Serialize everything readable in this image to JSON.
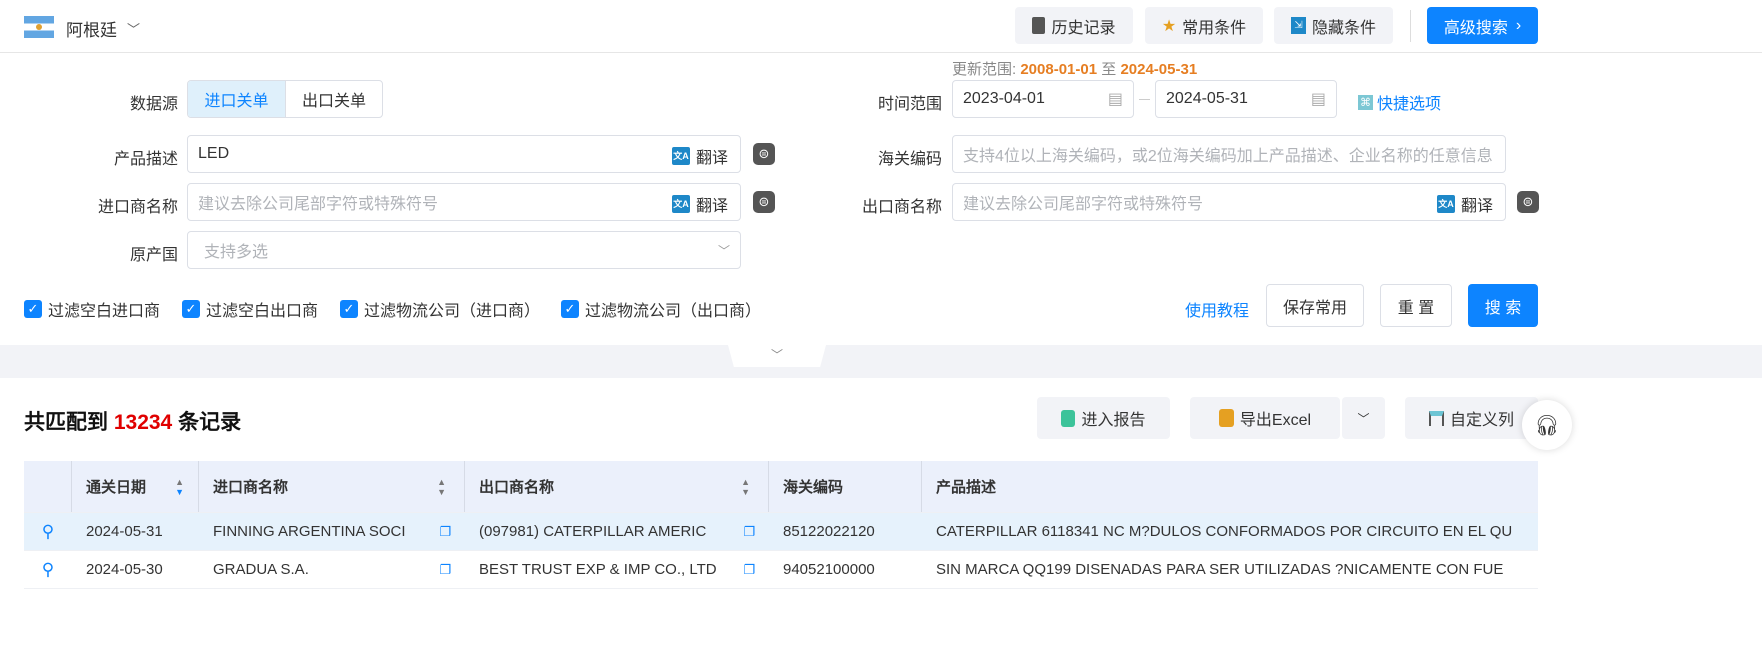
{
  "header": {
    "country": "阿根廷",
    "history": "历史记录",
    "favorites": "常用条件",
    "hide": "隐藏条件",
    "advanced": "高级搜索"
  },
  "update_range": {
    "label": "更新范围:",
    "start": "2008-01-01",
    "sep": "至",
    "end": "2024-05-31"
  },
  "form": {
    "source_label": "数据源",
    "source_options": [
      "进口关单",
      "出口关单"
    ],
    "source_selected": "进口关单",
    "time_label": "时间范围",
    "date_start": "2023-04-01",
    "date_end": "2024-05-31",
    "quick": "快捷选项",
    "product_label": "产品描述",
    "product_value": "LED",
    "translate": "翻译",
    "hs_label": "海关编码",
    "hs_placeholder": "支持4位以上海关编码，或2位海关编码加上产品描述、企业名称的任意信息",
    "importer_label": "进口商名称",
    "importer_placeholder": "建议去除公司尾部字符或特殊符号",
    "exporter_label": "出口商名称",
    "exporter_placeholder": "建议去除公司尾部字符或特殊符号",
    "origin_label": "原产国",
    "origin_placeholder": "支持多选",
    "checkboxes": [
      "过滤空白进口商",
      "过滤空白出口商",
      "过滤物流公司（进口商）",
      "过滤物流公司（出口商）"
    ],
    "tutorial": "使用教程",
    "save": "保存常用",
    "reset": "重 置",
    "search": "搜 索"
  },
  "results": {
    "prefix": "共匹配到",
    "count": "13234",
    "suffix": "条记录",
    "report": "进入报告",
    "export": "导出Excel",
    "custom": "自定义列"
  },
  "table": {
    "columns": [
      "通关日期",
      "进口商名称",
      "出口商名称",
      "海关编码",
      "产品描述"
    ],
    "rows": [
      [
        "2024-05-31",
        "FINNING ARGENTINA SOCI",
        "(097981) CATERPILLAR AMERIC",
        "85122022120",
        "CATERPILLAR 6118341 NC M?DULOS CONFORMADOS POR CIRCUITO EN EL QU"
      ],
      [
        "2024-05-30",
        "GRADUA S.A.",
        "BEST TRUST EXP & IMP CO., LTD",
        "94052100000",
        "SIN MARCA QQ199 DISENADAS PARA SER UTILIZADAS ?NICAMENTE CON FUE"
      ]
    ]
  },
  "colors": {
    "primary": "#0d84ff",
    "accent": "#e67e22",
    "count": "#e00000"
  }
}
